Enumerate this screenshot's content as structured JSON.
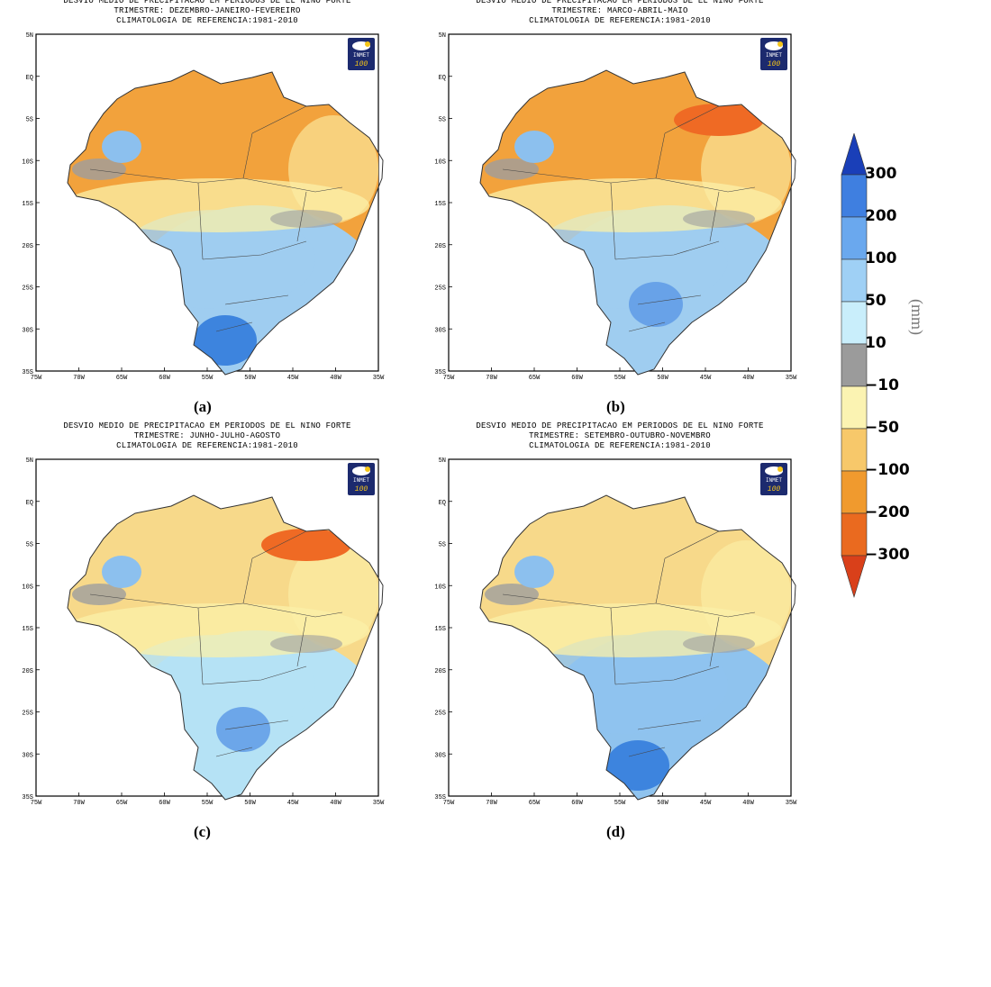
{
  "panels": [
    {
      "id": "a",
      "title_lines": [
        "DESVIO MEDIO DE PRECIPITACAO EM PERIODOS DE EL NINO FORTE",
        "TRIMESTRE: DEZEMBRO-JANEIRO-FEVEREIRO",
        "CLIMATOLOGIA DE REFERENCIA:1981-2010"
      ],
      "caption": "(a)",
      "dominant_north": "#f2a23c",
      "dominant_south": "#9fcdf0",
      "accent": "#3d84de"
    },
    {
      "id": "b",
      "title_lines": [
        "DESVIO MEDIO DE PRECIPITACAO EM PERIODOS DE EL NINO FORTE",
        "TRIMESTRE: MARCO-ABRIL-MAIO",
        "CLIMATOLOGIA DE REFERENCIA:1981-2010"
      ],
      "caption": "(b)",
      "dominant_north": "#f2a23c",
      "dominant_south": "#9fcdf0",
      "accent": "#ef6a24"
    },
    {
      "id": "c",
      "title_lines": [
        "DESVIO MEDIO DE PRECIPITACAO EM PERIODOS DE EL NINO FORTE",
        "TRIMESTRE: JUNHO-JULHO-AGOSTO",
        "CLIMATOLOGIA DE REFERENCIA:1981-2010"
      ],
      "caption": "(c)",
      "dominant_north": "#f7d98a",
      "dominant_south": "#b5e2f5",
      "accent": "#ef6a24"
    },
    {
      "id": "d",
      "title_lines": [
        "DESVIO MEDIO DE PRECIPITACAO EM PERIODOS DE EL NINO FORTE",
        "TRIMESTRE: SETEMBRO-OUTUBRO-NOVEMBRO",
        "CLIMATOLOGIA DE REFERENCIA:1981-2010"
      ],
      "caption": "(d)",
      "dominant_north": "#f7d98a",
      "dominant_south": "#8fc3ee",
      "accent": "#3d84de"
    }
  ],
  "axes": {
    "lat_ticks": [
      "5N",
      "EQ",
      "5S",
      "10S",
      "15S",
      "20S",
      "25S",
      "30S",
      "35S"
    ],
    "lon_ticks": [
      "75W",
      "70W",
      "65W",
      "60W",
      "55W",
      "50W",
      "45W",
      "40W",
      "35W"
    ]
  },
  "logo": {
    "text": "INMET",
    "sub": "100"
  },
  "colorbar": {
    "unit": "(mm)",
    "labels": [
      "300",
      "200",
      "100",
      "50",
      "10",
      "−10",
      "−50",
      "−100",
      "−200",
      "−300"
    ],
    "colors": [
      "#1a3fb8",
      "#3f7fe0",
      "#6aa8ee",
      "#9fd0f5",
      "#c9eefb",
      "#9b9b9b",
      "#fbf3b2",
      "#f7c86a",
      "#f09a2e",
      "#ea6a1f",
      "#d9401a"
    ]
  }
}
